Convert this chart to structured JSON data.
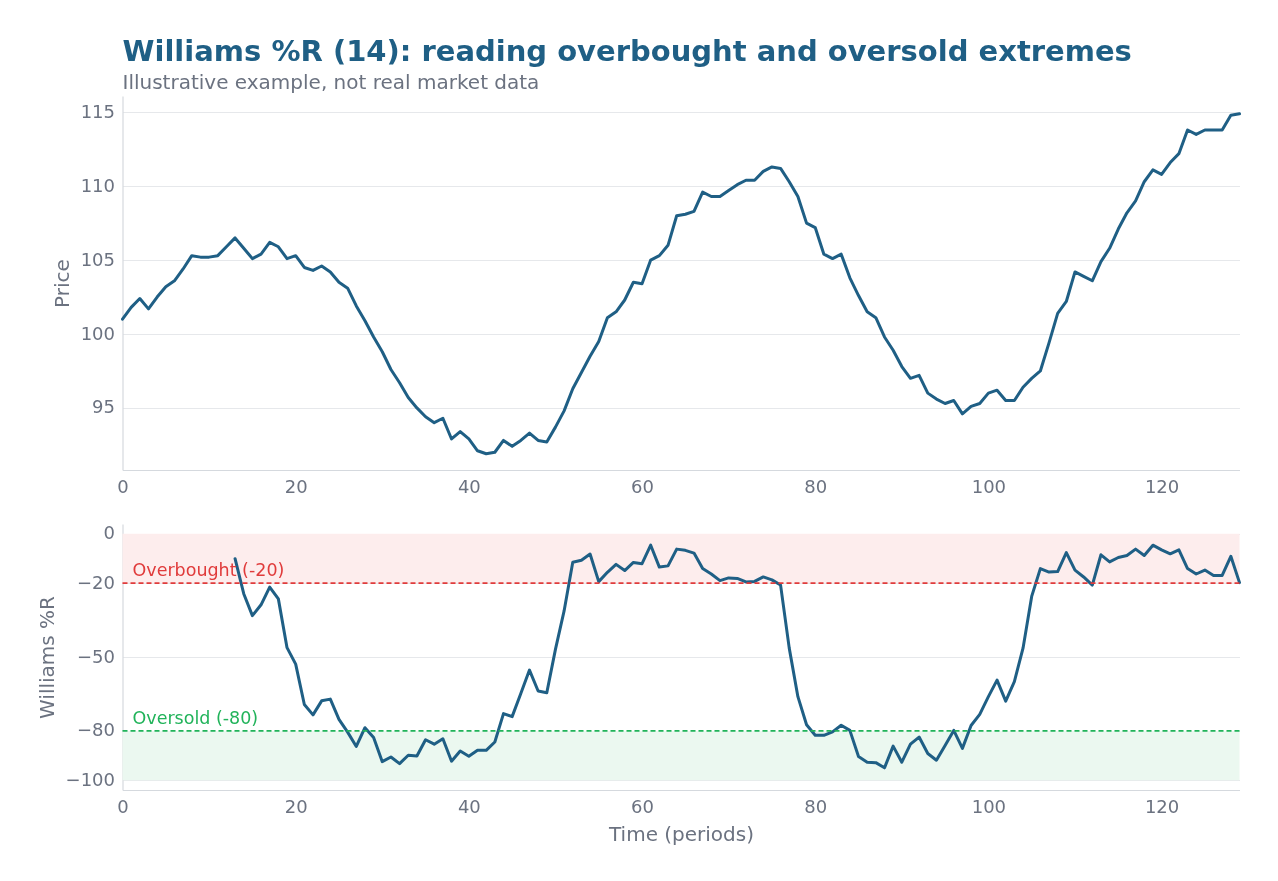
{
  "chart_data": [
    {
      "type": "line",
      "title": "Williams %R (14): reading overbought and oversold extremes",
      "subtitle": "Illustrative example, not real market data",
      "ylabel": "Price",
      "x": [
        0,
        1,
        2,
        3,
        4,
        5,
        6,
        7,
        8,
        9,
        10,
        11,
        12,
        13,
        14,
        15,
        16,
        17,
        18,
        19,
        20,
        21,
        22,
        23,
        24,
        25,
        26,
        27,
        28,
        29,
        30,
        31,
        32,
        33,
        34,
        35,
        36,
        37,
        38,
        39,
        40,
        41,
        42,
        43,
        44,
        45,
        46,
        47,
        48,
        49,
        50,
        51,
        52,
        53,
        54,
        55,
        56,
        57,
        58,
        59,
        60,
        61,
        62,
        63,
        64,
        65,
        66,
        67,
        68,
        69,
        70,
        71,
        72,
        73,
        74,
        75,
        76,
        77,
        78,
        79,
        80,
        81,
        82,
        83,
        84,
        85,
        86,
        87,
        88,
        89,
        90,
        91,
        92,
        93,
        94,
        95,
        96,
        97,
        98,
        99,
        100,
        101,
        102,
        103,
        104,
        105,
        106,
        107,
        108,
        109,
        110,
        111,
        112,
        113,
        114,
        115,
        116,
        117,
        118,
        119,
        120,
        121,
        122,
        123,
        124,
        125,
        126,
        127,
        128,
        129
      ],
      "series": [
        {
          "color": "#1f5f85",
          "values": [
            101.0,
            101.8,
            102.4,
            101.7,
            102.5,
            103.2,
            103.6,
            104.4,
            105.3,
            105.2,
            105.2,
            105.3,
            105.9,
            106.5,
            105.8,
            105.1,
            105.4,
            106.2,
            105.9,
            105.1,
            105.3,
            104.5,
            104.3,
            104.6,
            104.2,
            103.5,
            103.1,
            101.9,
            100.9,
            99.8,
            98.8,
            97.6,
            96.7,
            95.7,
            95.0,
            94.4,
            94.0,
            94.3,
            92.9,
            93.4,
            92.9,
            92.1,
            91.9,
            92.0,
            92.8,
            92.4,
            92.8,
            93.3,
            92.8,
            92.7,
            93.7,
            94.8,
            96.3,
            97.4,
            98.5,
            99.5,
            101.1,
            101.5,
            102.3,
            103.5,
            103.4,
            105.0,
            105.3,
            106.0,
            108.0,
            108.1,
            108.3,
            109.6,
            109.3,
            109.3,
            109.7,
            110.1,
            110.4,
            110.4,
            111.0,
            111.3,
            111.2,
            110.3,
            109.3,
            107.5,
            107.2,
            105.4,
            105.1,
            105.4,
            103.8,
            102.6,
            101.5,
            101.1,
            99.8,
            98.9,
            97.8,
            97.0,
            97.2,
            96.0,
            95.6,
            95.3,
            95.5,
            94.6,
            95.1,
            95.3,
            96.0,
            96.2,
            95.5,
            95.5,
            96.4,
            97.0,
            97.5,
            99.4,
            101.4,
            102.2,
            104.2,
            103.9,
            103.6,
            104.9,
            105.8,
            107.1,
            108.2,
            109.0,
            110.3,
            111.1,
            110.8,
            111.6,
            112.2,
            113.8,
            113.5,
            113.8,
            113.8,
            113.8,
            114.8,
            114.9
          ]
        }
      ],
      "xlim": [
        0,
        129
      ],
      "xticks": [
        0,
        20,
        40,
        60,
        80,
        100,
        120
      ],
      "ylim": [
        90.8,
        116.1
      ],
      "yticks": [
        95,
        100,
        105,
        110,
        115
      ],
      "grid": "y"
    },
    {
      "type": "line",
      "xlabel": "Time (periods)",
      "ylabel": "Williams %R",
      "series": [
        {
          "color": "#1f5f85",
          "x": [
            13,
            14,
            15,
            16,
            17,
            18,
            19,
            20,
            21,
            22,
            23,
            24,
            25,
            26,
            27,
            28,
            29,
            30,
            31,
            32,
            33,
            34,
            35,
            36,
            37,
            38,
            39,
            40,
            41,
            42,
            43,
            44,
            45,
            46,
            47,
            48,
            49,
            50,
            51,
            52,
            53,
            54,
            55,
            56,
            57,
            58,
            59,
            60,
            61,
            62,
            63,
            64,
            65,
            66,
            67,
            68,
            69,
            70,
            71,
            72,
            73,
            74,
            75,
            76,
            77,
            78,
            79,
            80,
            81,
            82,
            83,
            84,
            85,
            86,
            87,
            88,
            89,
            90,
            91,
            92,
            93,
            94,
            95,
            96,
            97,
            98,
            99,
            100,
            101,
            102,
            103,
            104,
            105,
            106,
            107,
            108,
            109,
            110,
            111,
            112,
            113,
            114,
            115,
            116,
            117,
            118,
            119,
            120,
            121,
            122,
            123,
            124,
            125,
            126,
            127,
            128,
            129
          ],
          "values": [
            -10.1,
            -24.3,
            -33.2,
            -28.8,
            -21.6,
            -26.4,
            -46.2,
            -52.9,
            -69.3,
            -73.5,
            -67.8,
            -67.1,
            -75.3,
            -80.5,
            -86.3,
            -78.7,
            -82.7,
            -92.5,
            -90.6,
            -93.3,
            -89.9,
            -90.2,
            -83.6,
            -85.4,
            -83.2,
            -92.3,
            -88.2,
            -90.3,
            -87.9,
            -87.9,
            -84.5,
            -73.0,
            -74.2,
            -64.8,
            -55.3,
            -63.8,
            -64.5,
            -46.9,
            -31.3,
            -11.5,
            -10.7,
            -8.2,
            -19.4,
            -15.6,
            -12.4,
            -14.9,
            -11.6,
            -12.1,
            -4.6,
            -13.5,
            -13.0,
            -6.2,
            -6.7,
            -7.8,
            -14.1,
            -16.3,
            -19.0,
            -17.9,
            -18.1,
            -19.5,
            -19.3,
            -17.5,
            -18.7,
            -20.8,
            -46.4,
            -66.1,
            -77.5,
            -81.8,
            -81.8,
            -80.4,
            -77.7,
            -79.8,
            -90.4,
            -92.7,
            -92.9,
            -95.0,
            -86.2,
            -92.7,
            -85.4,
            -82.5,
            -89.2,
            -91.9,
            -85.9,
            -79.8,
            -87.1,
            -77.8,
            -73.3,
            -66.1,
            -59.4,
            -67.9,
            -60.0,
            -46.4,
            -25.4,
            -14.1,
            -15.5,
            -15.3,
            -7.6,
            -14.7,
            -17.5,
            -20.8,
            -8.5,
            -11.4,
            -9.6,
            -8.8,
            -6.2,
            -8.8,
            -4.6,
            -6.5,
            -8.1,
            -6.5,
            -14.1,
            -16.3,
            -14.7,
            -16.9,
            -16.9,
            -9.1,
            -19.8
          ]
        }
      ],
      "xlim": [
        0,
        129
      ],
      "xticks": [
        0,
        20,
        40,
        60,
        80,
        100,
        120
      ],
      "ylim": [
        -104,
        4
      ],
      "yticks": [
        -100,
        -80,
        -50,
        -20,
        0
      ],
      "grid": "y",
      "bands": [
        {
          "axis": "y",
          "from": -20,
          "to": 0,
          "color": "#fdeded"
        },
        {
          "axis": "y",
          "from": -100,
          "to": -80,
          "color": "#ebf8f0"
        }
      ],
      "ref_lines": [
        {
          "axis": "y",
          "value": -20,
          "label": "Overbought (-20)",
          "color": "#e03b3b",
          "line_style": "dashed"
        },
        {
          "axis": "y",
          "value": -80,
          "label": "Oversold (-80)",
          "color": "#21b35a",
          "line_style": "dashed"
        }
      ]
    }
  ]
}
